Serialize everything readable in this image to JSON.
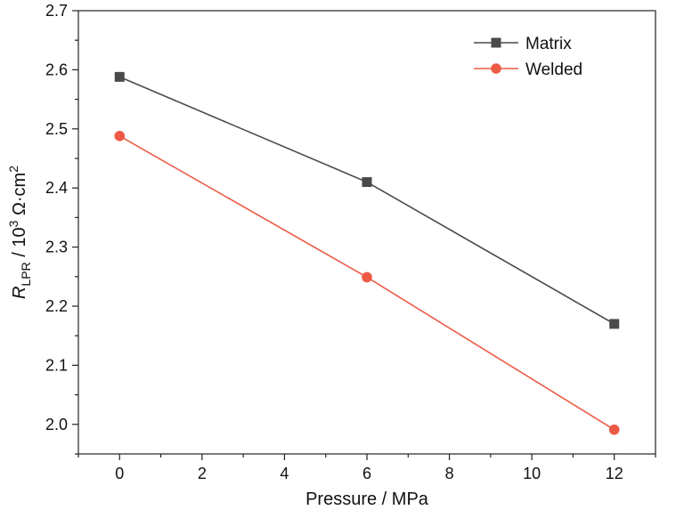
{
  "chart_data": {
    "type": "line",
    "xlabel": "Pressure / MPa",
    "ylabel": {
      "main": "R",
      "subscript": "LPR",
      "mid": " / 10",
      "superscript1": "3",
      "unit": " Ω·cm",
      "superscript2": "2"
    },
    "xlim": [
      -1,
      13
    ],
    "ylim": [
      1.95,
      2.7
    ],
    "xticks": [
      0,
      2,
      4,
      6,
      8,
      10,
      12
    ],
    "yticks": [
      2.0,
      2.1,
      2.2,
      2.3,
      2.4,
      2.5,
      2.6,
      2.7
    ],
    "grid": false,
    "legend_position": "top-right",
    "series": [
      {
        "name": "Matrix",
        "marker": "square",
        "color": "#4a4a4a",
        "x": [
          0,
          6,
          12
        ],
        "y": [
          2.588,
          2.41,
          2.17
        ]
      },
      {
        "name": "Welded",
        "marker": "circle",
        "color": "#ec5a45",
        "x": [
          0,
          6,
          12
        ],
        "y": [
          2.488,
          2.249,
          1.991
        ]
      }
    ]
  }
}
